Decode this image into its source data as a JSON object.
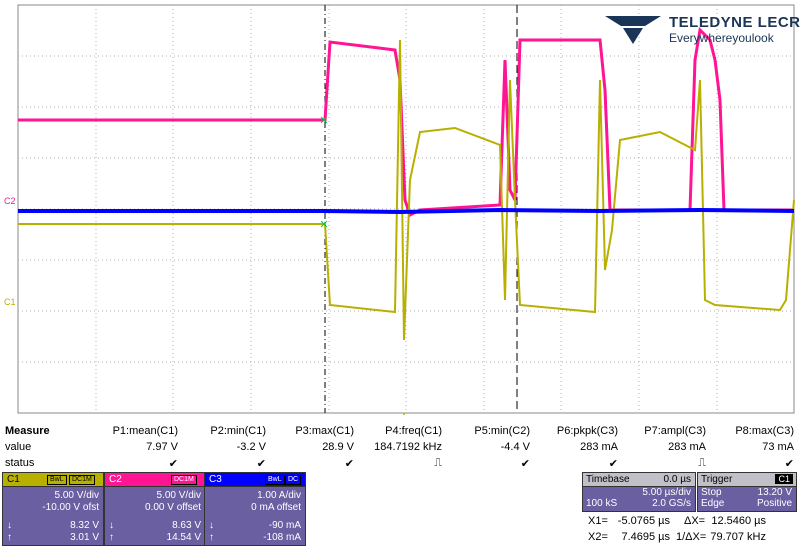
{
  "branding": {
    "brand": "TELEDYNE LECROY",
    "tagline": "Everywhereyoulook"
  },
  "channel_markers": {
    "c2": "C2",
    "c1": "C1"
  },
  "measure": {
    "header": "Measure",
    "row_labels": {
      "value": "value",
      "status": "status"
    },
    "params": [
      {
        "name": "P1:mean(C1)",
        "value": "7.97 V",
        "status": "✔"
      },
      {
        "name": "P2:min(C1)",
        "value": "-3.2 V",
        "status": "✔"
      },
      {
        "name": "P3:max(C1)",
        "value": "28.9 V",
        "status": "✔"
      },
      {
        "name": "P4:freq(C1)",
        "value": "184.7192 kHz",
        "status": "⎍"
      },
      {
        "name": "P5:min(C2)",
        "value": "-4.4 V",
        "status": "✔"
      },
      {
        "name": "P6:pkpk(C3)",
        "value": "283 mA",
        "status": "✔"
      },
      {
        "name": "P7:ampl(C3)",
        "value": "283 mA",
        "status": "⎍"
      },
      {
        "name": "P8:max(C3)",
        "value": "73 mA",
        "status": "✔"
      }
    ]
  },
  "channels": [
    {
      "name": "C1",
      "badge1": "BwL",
      "badge2": "DC1M",
      "scale": "5.00 V/div",
      "offset": "-10.00 V ofst",
      "low": "8.32 V",
      "high": "3.01 V",
      "color": "#b8b000"
    },
    {
      "name": "C2",
      "badge1": "",
      "badge2": "DC1M",
      "scale": "5.00 V/div",
      "offset": "0.00 V offset",
      "low": "8.63 V",
      "high": "14.54 V",
      "color": "#ff1493"
    },
    {
      "name": "C3",
      "badge1": "BwL",
      "badge2": "DC",
      "scale": "1.00 A/div",
      "offset": "0 mA offset",
      "low": "-90 mA",
      "high": "-108 mA",
      "color": "#0000ff"
    }
  ],
  "timebase": {
    "label": "Timebase",
    "delay": "0.0 µs",
    "div": "5.00 µs/div",
    "samples": "100 kS",
    "rate": "2.0 GS/s"
  },
  "trigger": {
    "label": "Trigger",
    "channel": "C1",
    "mode": "Stop",
    "level": "13.20 V",
    "type": "Edge",
    "slope": "Positive"
  },
  "cursors": {
    "x1_label": "X1=",
    "x1": "-5.0765 µs",
    "dx_label": "ΔX=",
    "dx": "12.5460 µs",
    "x2_label": "X2=",
    "x2": "7.4695 µs",
    "idx_label": "1/ΔX=",
    "idx": "79.707 kHz"
  }
}
